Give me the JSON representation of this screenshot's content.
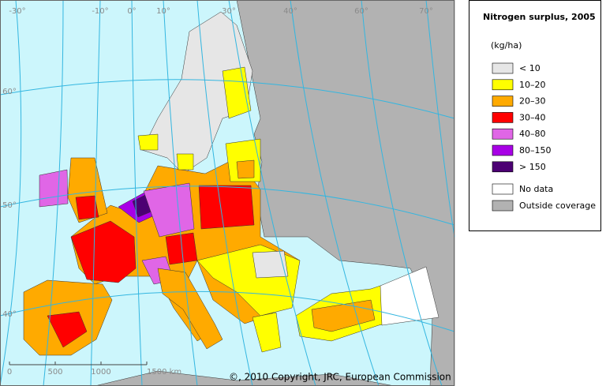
{
  "map": {
    "graticule_labels": [
      "-30°",
      "-10°",
      "0°",
      "10°",
      "30°",
      "40°",
      "60°",
      "70°",
      "60°",
      "50°",
      "40°"
    ],
    "scale_labels": [
      "0",
      "500",
      "1000",
      "1500 km"
    ],
    "copyright": "©, 2010 Copyright, JRC, European Commission"
  },
  "legend": {
    "title": "Nitrogen surplus, 2005",
    "unit": "(kg/ha)",
    "items": [
      {
        "label": "< 10",
        "color": "#e6e6e6"
      },
      {
        "label": "10–20",
        "color": "#ffff00"
      },
      {
        "label": "20–30",
        "color": "#ffaa00"
      },
      {
        "label": "30–40",
        "color": "#ff0000"
      },
      {
        "label": "40–80",
        "color": "#e066e6"
      },
      {
        "label": "80–150",
        "color": "#a800e6"
      },
      {
        "label": "> 150",
        "color": "#4c0073"
      }
    ],
    "extra_items": [
      {
        "label": "No data",
        "color": "#ffffff"
      },
      {
        "label": "Outside coverage",
        "color": "#b2b2b2"
      }
    ]
  }
}
